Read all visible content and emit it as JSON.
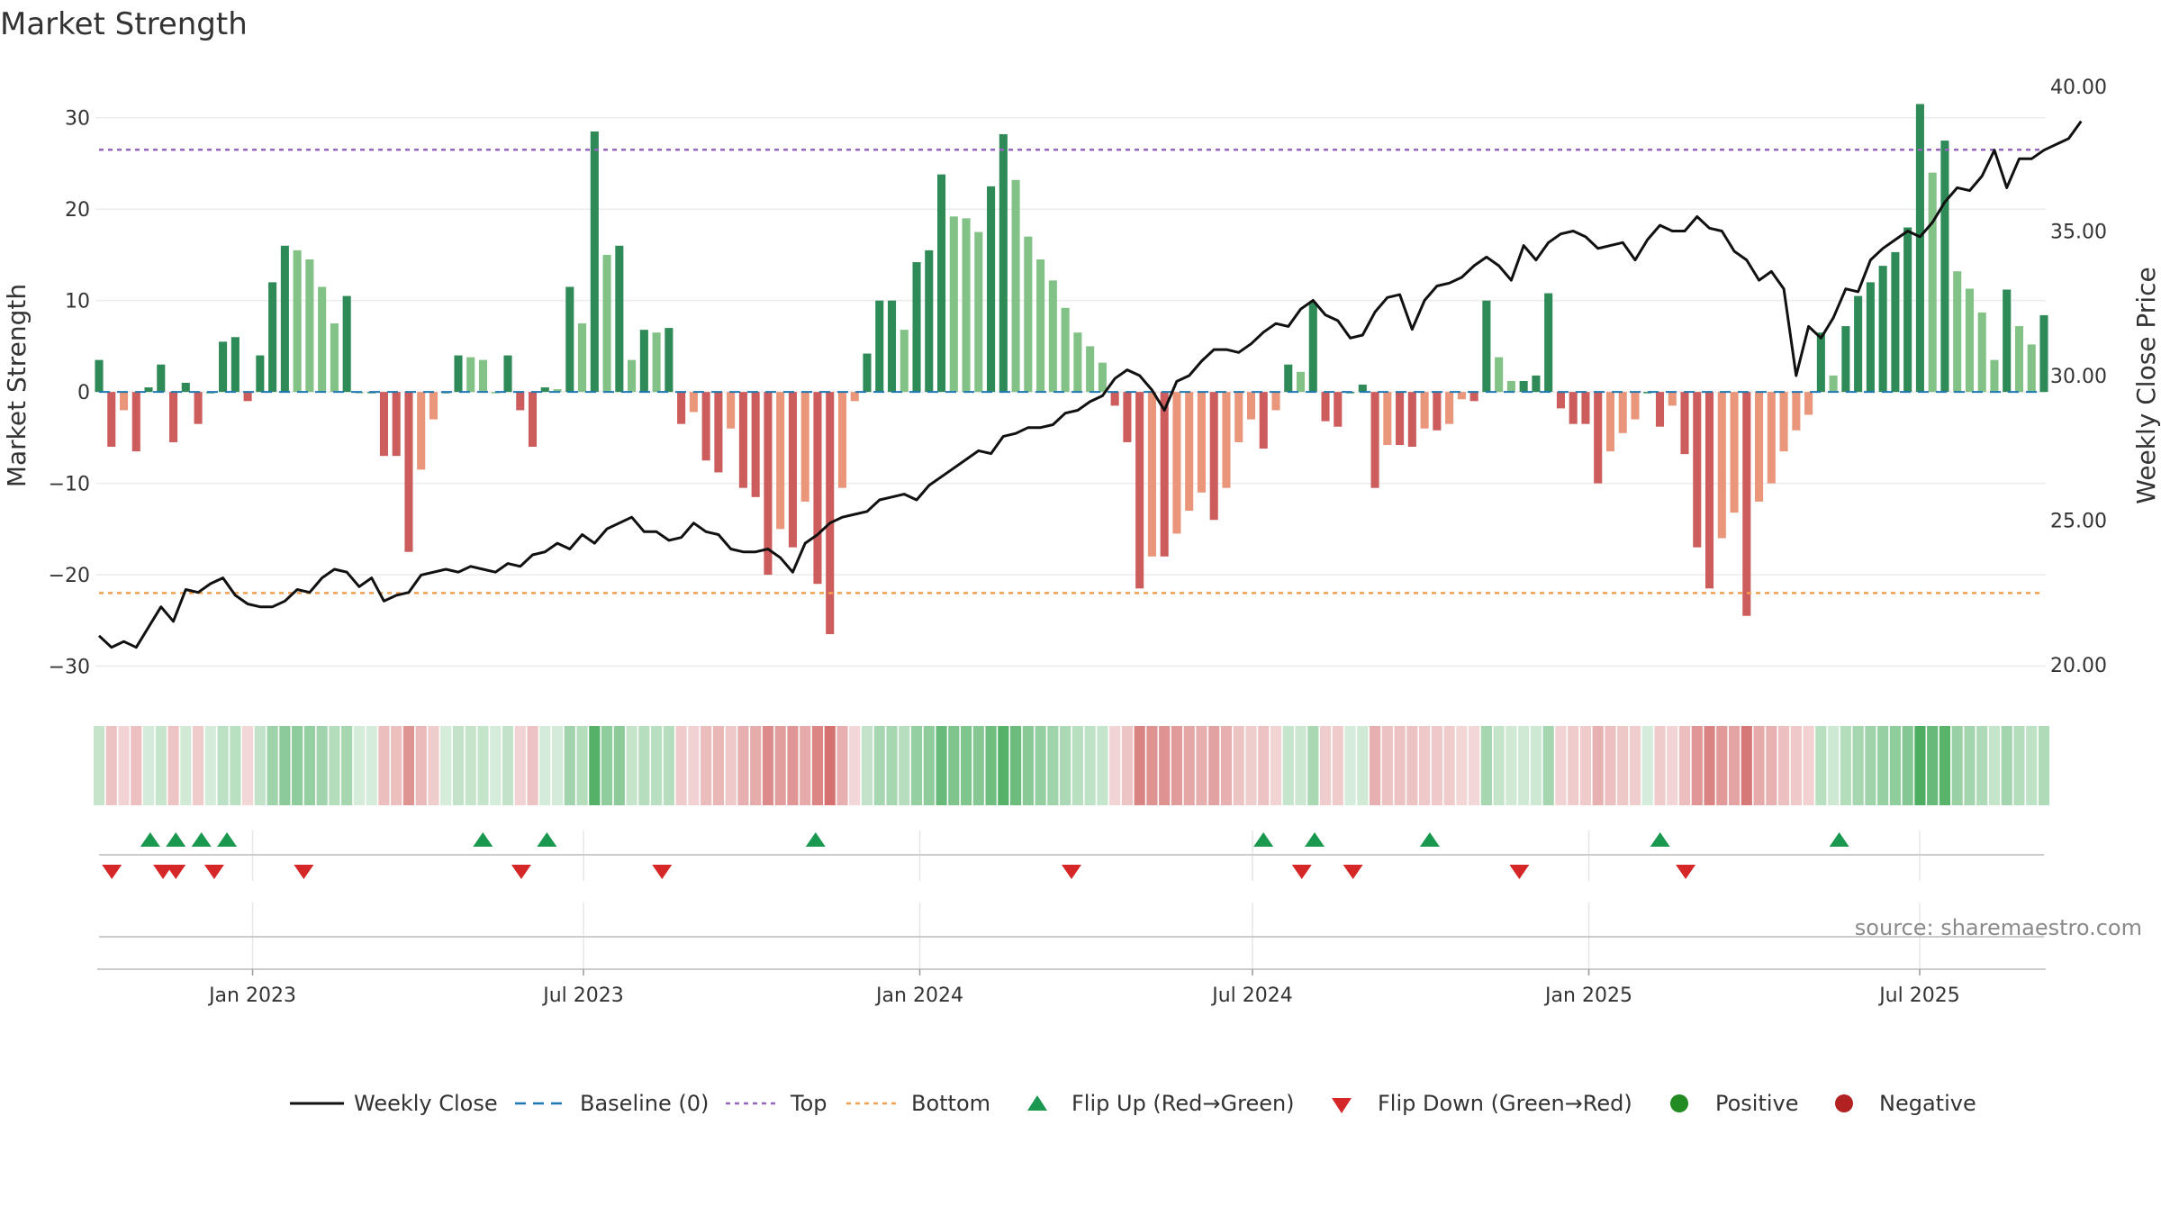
{
  "chart_data": {
    "type": "bar",
    "title": "Market Strength",
    "ylabel": "Market Strength",
    "y2label": "Weekly Close Price",
    "ylim": [
      -33,
      35
    ],
    "y2lim": [
      19,
      40.5
    ],
    "yticks": [
      30,
      20,
      10,
      0,
      -10,
      -20,
      -30
    ],
    "ytick_labels": [
      "30",
      "20",
      "10",
      "0",
      "−10",
      "−20",
      "−30"
    ],
    "y2ticks": [
      40,
      35,
      30,
      25,
      20
    ],
    "y2tick_labels": [
      "40.00",
      "35.00",
      "30.00",
      "25.00",
      "20.00"
    ],
    "x_start": "2022-10-09",
    "x_end": "2025-09-07",
    "xticks": [
      "2023-01-01",
      "2023-07-01",
      "2024-01-01",
      "2024-07-01",
      "2025-01-01",
      "2025-07-01"
    ],
    "xtick_labels": [
      "Jan 2023",
      "Jul 2023",
      "Jan 2024",
      "Jul 2024",
      "Jan 2025",
      "Jul 2025"
    ],
    "top_level": 26.5,
    "bottom_level": -22,
    "source": "source: sharemaestro.com",
    "colors": {
      "pos_strong": "#2e8b57",
      "pos_weak": "#82c286",
      "neg_strong": "#cd5c5c",
      "neg_weak": "#e9967a",
      "line": "#111111",
      "baseline": "#1f77b4",
      "top": "#9467bd",
      "bottom": "#f0a050",
      "flip_up": "#1a9850",
      "flip_down": "#d62728",
      "positive": "#228b22",
      "negative": "#b22222"
    },
    "series": [
      {
        "name": "Weekly Close",
        "values": [
          21.0,
          20.6,
          20.8,
          20.6,
          21.3,
          22.0,
          21.5,
          22.6,
          22.5,
          22.8,
          23.0,
          22.4,
          22.1,
          22.0,
          22.0,
          22.2,
          22.6,
          22.5,
          23.0,
          23.3,
          23.2,
          22.7,
          23.0,
          22.2,
          22.4,
          22.5,
          23.1,
          23.2,
          23.3,
          23.2,
          23.4,
          23.3,
          23.2,
          23.5,
          23.4,
          23.8,
          23.9,
          24.2,
          24.0,
          24.5,
          24.2,
          24.7,
          24.9,
          25.1,
          24.6,
          24.6,
          24.3,
          24.4,
          24.9,
          24.6,
          24.5,
          24.0,
          23.9,
          23.9,
          24.0,
          23.7,
          23.2,
          24.2,
          24.5,
          24.9,
          25.1,
          25.2,
          25.3,
          25.7,
          25.8,
          25.9,
          25.7,
          26.2,
          26.5,
          26.8,
          27.1,
          27.4,
          27.3,
          27.9,
          28.0,
          28.2,
          28.2,
          28.3,
          28.7,
          28.8,
          29.1,
          29.3,
          29.9,
          30.2,
          30.0,
          29.5,
          28.8,
          29.8,
          30.0,
          30.5,
          30.9,
          30.9,
          30.8,
          31.1,
          31.5,
          31.8,
          31.7,
          32.3,
          32.6,
          32.1,
          31.9,
          31.3,
          31.4,
          32.2,
          32.7,
          32.8,
          31.6,
          32.6,
          33.1,
          33.2,
          33.4,
          33.8,
          34.1,
          33.8,
          33.3,
          34.5,
          34.0,
          34.6,
          34.9,
          35.0,
          34.8,
          34.4,
          34.5,
          34.6,
          34.0,
          34.7,
          35.2,
          35.0,
          35.0,
          35.5,
          35.1,
          35.0,
          34.3,
          34.0,
          33.3,
          33.6,
          33.0,
          30.0,
          31.7,
          31.3,
          32.0,
          33.0,
          32.9,
          34.0,
          34.4,
          34.7,
          35.0,
          34.8,
          35.3,
          36.0,
          36.5,
          36.4,
          36.9,
          37.8,
          36.5,
          37.5,
          37.5,
          37.8,
          38.0,
          38.2,
          38.8
        ]
      },
      {
        "name": "Market Strength",
        "values": [
          3.5,
          -6,
          -2,
          -6.5,
          0.5,
          3,
          -5.5,
          1,
          -3.5,
          0,
          5.5,
          6,
          -1,
          4,
          12,
          16,
          15.5,
          14.5,
          11.5,
          7.5,
          10.5,
          0,
          0,
          -7,
          -7,
          -17.5,
          -8.5,
          -3,
          0,
          4,
          3.8,
          3.5,
          0,
          4,
          -2,
          -6,
          0.5,
          0.3,
          11.5,
          7.5,
          28.5,
          15,
          16,
          3.5,
          6.8,
          6.5,
          7,
          -3.5,
          -2.2,
          -7.5,
          -8.8,
          -4,
          -10.5,
          -11.5,
          -20,
          -15,
          -17,
          -12,
          -21,
          -26.5,
          -10.5,
          -1,
          4.2,
          10,
          10,
          6.8,
          14.2,
          15.5,
          23.8,
          19.2,
          19,
          17.5,
          22.5,
          28.2,
          23.2,
          17,
          14.5,
          12.2,
          9.2,
          6.5,
          5,
          3.2,
          -1.5,
          -5.5,
          -21.5,
          -18,
          -18,
          -15.5,
          -13,
          -11,
          -14,
          -10.5,
          -5.5,
          -3,
          -6.2,
          -2,
          3,
          2.2,
          9.8,
          -3.2,
          -3.8,
          0,
          0.8,
          -10.5,
          -5.8,
          -5.8,
          -6,
          -4,
          -4.2,
          -3.5,
          -0.8,
          -1,
          10,
          3.8,
          1.2,
          1.2,
          1.8,
          10.8,
          -1.8,
          -3.5,
          -3.5,
          -10,
          -6.5,
          -4.5,
          -3,
          0,
          -3.8,
          -1.5,
          -6.8,
          -17,
          -21.5,
          -16,
          -13.2,
          -24.5,
          -12,
          -10,
          -6.5,
          -4.2,
          -2.5,
          6.5,
          1.8,
          7.2,
          10.5,
          12,
          13.8,
          15.3,
          18,
          31.5,
          24,
          27.5,
          13.2,
          11.3,
          8.7,
          3.5,
          11.2,
          7.2,
          5.2,
          8.4
        ]
      }
    ],
    "flip_up": [
      "2022-11-06",
      "2022-11-20",
      "2022-12-04",
      "2022-12-18",
      "2023-05-07",
      "2023-06-11",
      "2023-11-05",
      "2024-07-07",
      "2024-08-04",
      "2024-10-06",
      "2025-02-09",
      "2025-05-18"
    ],
    "flip_down": [
      "2022-10-16",
      "2022-11-13",
      "2022-11-20",
      "2022-12-11",
      "2023-01-29",
      "2023-05-28",
      "2023-08-13",
      "2024-03-24",
      "2024-07-28",
      "2024-08-25",
      "2024-11-24",
      "2025-02-23"
    ],
    "legend": [
      "Weekly Close",
      "Baseline (0)",
      "Top",
      "Bottom",
      "Flip Up (Red→Green)",
      "Flip Down (Green→Red)",
      "Positive",
      "Negative"
    ],
    "legend_placement": "bottom-center",
    "grid": true
  }
}
